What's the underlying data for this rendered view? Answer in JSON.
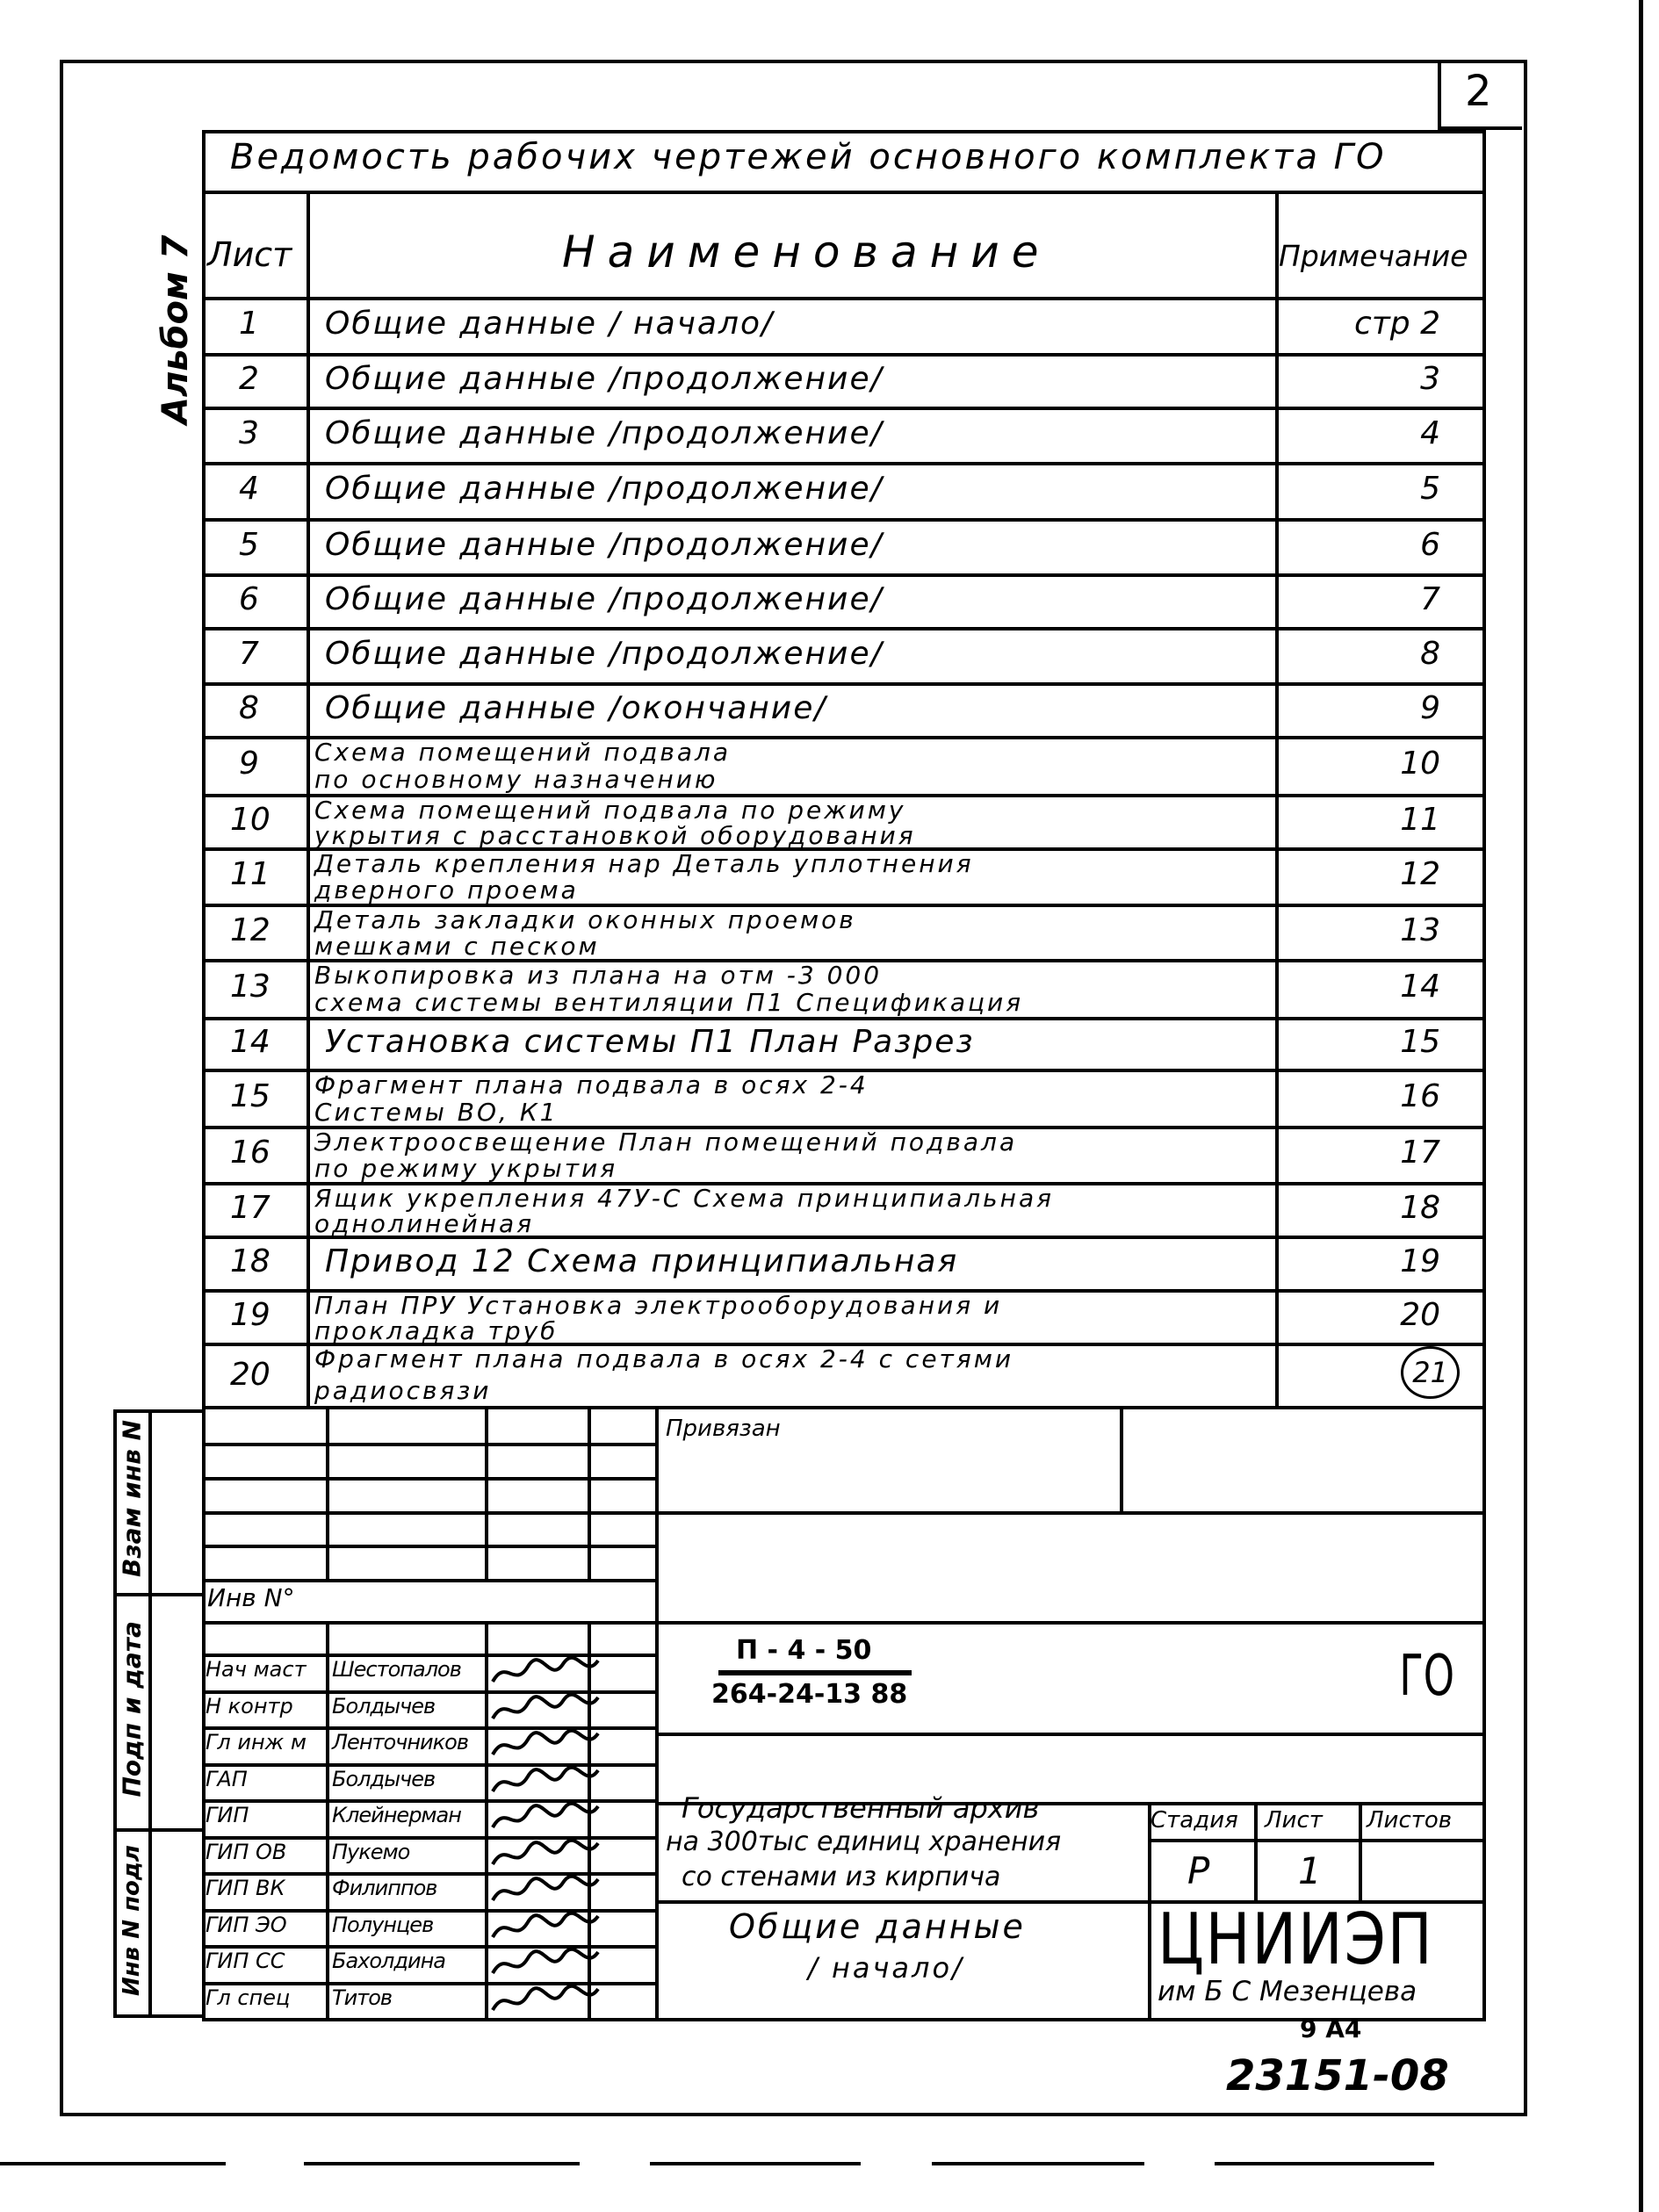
{
  "sheet_number": "2",
  "album_label": "Альбом 7",
  "table": {
    "title": "Ведомость рабочих чертежей основного комплекта ГО",
    "headers": {
      "sheet": "Лист",
      "name": "Наименование",
      "note": "Примечание"
    },
    "rows": [
      {
        "sheet": "1",
        "name": [
          "Общие данные  / начало/"
        ],
        "note": "стр  2"
      },
      {
        "sheet": "2",
        "name": [
          "Общие данные  /продолжение/"
        ],
        "note": "3"
      },
      {
        "sheet": "3",
        "name": [
          "Общие данные /продолжение/"
        ],
        "note": "4"
      },
      {
        "sheet": "4",
        "name": [
          "Общие данные  /продолжение/"
        ],
        "note": "5"
      },
      {
        "sheet": "5",
        "name": [
          "Общие данные   /продолжение/"
        ],
        "note": "6"
      },
      {
        "sheet": "6",
        "name": [
          "Общие данные   /продолжение/"
        ],
        "note": "7"
      },
      {
        "sheet": "7",
        "name": [
          "Общие данные   /продолжение/"
        ],
        "note": "8"
      },
      {
        "sheet": "8",
        "name": [
          "Общие данные  /окончание/"
        ],
        "note": "9"
      },
      {
        "sheet": "9",
        "name": [
          "Схема  помещений  подвала",
          "по основному  назначению"
        ],
        "note": "10"
      },
      {
        "sheet": "10",
        "name": [
          "Схема  помещений  подвала  по режиму",
          "укрытия   с расстановкой оборудования"
        ],
        "note": "11"
      },
      {
        "sheet": "11",
        "name": [
          "Деталь  крепления нар Деталь  уплотнения",
          "дверного проема"
        ],
        "note": "12"
      },
      {
        "sheet": "12",
        "name": [
          "Деталь закладки  оконных  проемов",
          "мешками  с  песком"
        ],
        "note": "13"
      },
      {
        "sheet": "13",
        "name": [
          "Выкопировка из  плана  на  отм -3 000",
          "схема системы вентиляции П1 Спецификация"
        ],
        "note": "14"
      },
      {
        "sheet": "14",
        "name": [
          "Установка системы П1  План  Разрез"
        ],
        "note": "15"
      },
      {
        "sheet": "15",
        "name": [
          "Фрагмент  плана подвала  в  осях 2-4",
          "Системы ВО, К1"
        ],
        "note": "16"
      },
      {
        "sheet": "16",
        "name": [
          "Электроосвещение  План  помещений  подвала",
          "по режиму  укрытия"
        ],
        "note": "17"
      },
      {
        "sheet": "17",
        "name": [
          "Ящик укрепления 47У-С  Схема принципиальная",
          "однолинейная"
        ],
        "note": "18"
      },
      {
        "sheet": "18",
        "name": [
          "Привод 12  Схема  принципиальная"
        ],
        "note": "19"
      },
      {
        "sheet": "19",
        "name": [
          "План ПРУ  Установка электрооборудования  и",
          "прокладка труб"
        ],
        "note": "20"
      },
      {
        "sheet": "20",
        "name": [
          "Фрагмент плана  подвала  в осях  2-4  с сетями",
          "радиосвязи"
        ],
        "note": "21"
      }
    ]
  },
  "side_stamps": {
    "replaced_inv": "Взам инв N",
    "sign_date": "Подп и дата",
    "inv_original": "Инв N подл"
  },
  "title_block": {
    "attached_label": "Привязан",
    "inv_label": "Инв N°",
    "designation_line1": "П - 4 - 50",
    "designation_line2": "264-24-13 88",
    "set_code": "ГО",
    "project_title": [
      "Государственный архив",
      "на 300тыс единиц хранения",
      "со стенами  из кирпича"
    ],
    "sheet_title": [
      "Общие данные",
      "/ начало/"
    ],
    "stage_header": "Стадия",
    "sheet_header": "Лист",
    "sheets_header": "Листов",
    "stage": "Р",
    "sheet": "1",
    "sheets": "",
    "organization": "ЦНИИЭП",
    "organization_sub": "им Б С Мезенцева",
    "signatories": [
      {
        "role": "Нач маст",
        "name": "Шестопалов"
      },
      {
        "role": "Н контр",
        "name": "Болдычев"
      },
      {
        "role": "Гл инж м",
        "name": "Ленточников"
      },
      {
        "role": "ГАП",
        "name": "Болдычев"
      },
      {
        "role": "ГИП",
        "name": "Клейнерман"
      },
      {
        "role": "ГИП ОВ",
        "name": "Пукемо"
      },
      {
        "role": "ГИП ВК",
        "name": "Филиппов"
      },
      {
        "role": "ГИП ЭО",
        "name": "Полунцев"
      },
      {
        "role": "ГИП СС",
        "name": "Бахолдина"
      },
      {
        "role": "Гл спец",
        "name": "Титов"
      }
    ]
  },
  "format_label": "9  А4",
  "archive_number": "23151-08"
}
